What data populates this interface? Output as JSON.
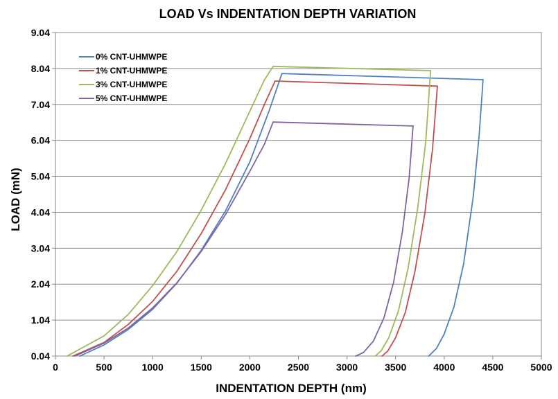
{
  "chart_data": {
    "type": "line",
    "title": "LOAD Vs INDENTATION DEPTH VARIATION",
    "xlabel": "INDENTATION DEPTH (nm)",
    "ylabel": "LOAD (mN)",
    "xlim": [
      0,
      5000
    ],
    "ylim": [
      0.04,
      9.04
    ],
    "xticks": [
      "0",
      "500",
      "1000",
      "1500",
      "2000",
      "2500",
      "3000",
      "3500",
      "4000",
      "4500",
      "5000"
    ],
    "yticks": [
      "0.04",
      "1.04",
      "2.04",
      "3.04",
      "4.04",
      "5.04",
      "6.04",
      "7.04",
      "8.04",
      "9.04"
    ],
    "grid": "horizontal",
    "legend_position": "top-left",
    "series": [
      {
        "name": "0% CNT-UHMWPE",
        "color": "#4F81BD",
        "loading": [
          [
            250,
            0.04
          ],
          [
            500,
            0.35
          ],
          [
            750,
            0.78
          ],
          [
            1000,
            1.34
          ],
          [
            1250,
            2.07
          ],
          [
            1500,
            2.98
          ],
          [
            1750,
            4.08
          ],
          [
            2000,
            5.44
          ],
          [
            2200,
            6.87
          ],
          [
            2330,
            7.9
          ]
        ],
        "hold": [
          [
            2330,
            7.9
          ],
          [
            4400,
            7.73
          ]
        ],
        "unloading": [
          [
            4400,
            7.73
          ],
          [
            4360,
            6.2
          ],
          [
            4300,
            4.5
          ],
          [
            4200,
            2.6
          ],
          [
            4100,
            1.4
          ],
          [
            4000,
            0.65
          ],
          [
            3920,
            0.25
          ],
          [
            3840,
            0.04
          ]
        ]
      },
      {
        "name": "1% CNT-UHMWPE",
        "color": "#C0504D",
        "loading": [
          [
            180,
            0.04
          ],
          [
            500,
            0.42
          ],
          [
            750,
            0.92
          ],
          [
            1000,
            1.56
          ],
          [
            1250,
            2.4
          ],
          [
            1500,
            3.45
          ],
          [
            1750,
            4.67
          ],
          [
            2000,
            6.09
          ],
          [
            2150,
            7.04
          ],
          [
            2260,
            7.69
          ]
        ],
        "hold": [
          [
            2260,
            7.69
          ],
          [
            3930,
            7.55
          ]
        ],
        "unloading": [
          [
            3930,
            7.55
          ],
          [
            3880,
            5.8
          ],
          [
            3800,
            4.0
          ],
          [
            3700,
            2.4
          ],
          [
            3600,
            1.25
          ],
          [
            3500,
            0.55
          ],
          [
            3420,
            0.18
          ],
          [
            3360,
            0.04
          ]
        ]
      },
      {
        "name": "3% CNT-UHMWPE",
        "color": "#9BBB59",
        "loading": [
          [
            120,
            0.04
          ],
          [
            500,
            0.6
          ],
          [
            750,
            1.2
          ],
          [
            1000,
            2.0
          ],
          [
            1250,
            2.95
          ],
          [
            1500,
            4.1
          ],
          [
            1750,
            5.4
          ],
          [
            2000,
            6.85
          ],
          [
            2150,
            7.72
          ],
          [
            2240,
            8.1
          ]
        ],
        "hold": [
          [
            2240,
            8.1
          ],
          [
            3860,
            7.98
          ]
        ],
        "unloading": [
          [
            3860,
            7.98
          ],
          [
            3810,
            6.0
          ],
          [
            3730,
            4.2
          ],
          [
            3630,
            2.5
          ],
          [
            3530,
            1.3
          ],
          [
            3430,
            0.55
          ],
          [
            3350,
            0.18
          ],
          [
            3290,
            0.04
          ]
        ]
      },
      {
        "name": "5% CNT-UHMWPE",
        "color": "#8064A2",
        "loading": [
          [
            200,
            0.04
          ],
          [
            500,
            0.4
          ],
          [
            750,
            0.82
          ],
          [
            1000,
            1.38
          ],
          [
            1250,
            2.08
          ],
          [
            1500,
            2.95
          ],
          [
            1750,
            3.98
          ],
          [
            2000,
            5.18
          ],
          [
            2150,
            5.93
          ],
          [
            2240,
            6.55
          ]
        ],
        "hold": [
          [
            2240,
            6.55
          ],
          [
            3680,
            6.44
          ]
        ],
        "unloading": [
          [
            3680,
            6.44
          ],
          [
            3640,
            5.0
          ],
          [
            3570,
            3.5
          ],
          [
            3480,
            2.1
          ],
          [
            3380,
            1.1
          ],
          [
            3270,
            0.45
          ],
          [
            3170,
            0.14
          ],
          [
            3090,
            0.04
          ]
        ]
      }
    ]
  }
}
